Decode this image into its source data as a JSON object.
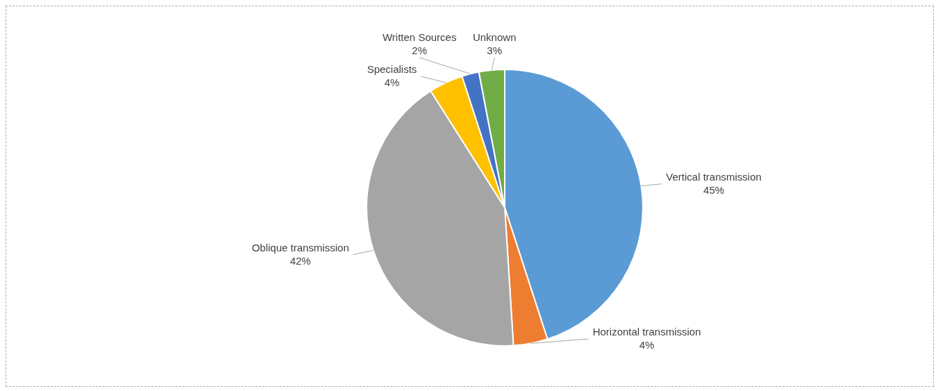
{
  "chart_data": {
    "type": "pie",
    "categories": [
      "Vertical transmission",
      "Horizontal transmission",
      "Oblique transmission",
      "Specialists",
      "Written Sources",
      "Unknown"
    ],
    "values": [
      45,
      4,
      42,
      4,
      2,
      3
    ],
    "colors": [
      "#5b9bd5",
      "#ed7d31",
      "#a5a5a5",
      "#ffc000",
      "#4472c4",
      "#70ad47"
    ],
    "value_labels": [
      "45%",
      "4%",
      "42%",
      "4%",
      "2%",
      "3%"
    ],
    "legend": false
  }
}
